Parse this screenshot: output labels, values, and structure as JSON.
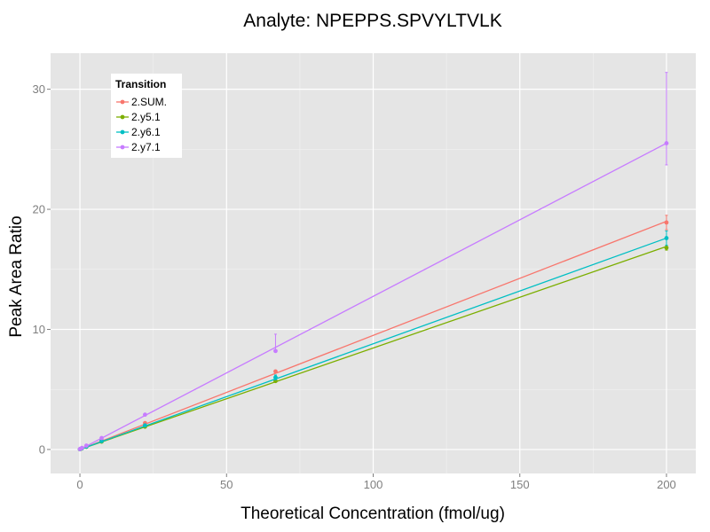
{
  "chart_data": {
    "type": "line",
    "title": "Analyte: NPEPPS.SPVYLTVLK",
    "xlabel": "Theoretical Concentration (fmol/ug)",
    "ylabel": "Peak Area Ratio",
    "xlim": [
      -10,
      210
    ],
    "ylim": [
      -2,
      33
    ],
    "xticks": [
      0,
      50,
      100,
      150,
      200
    ],
    "yticks": [
      0,
      10,
      20,
      30
    ],
    "grid": true,
    "legend": {
      "title": "Transition",
      "placement": "top-left"
    },
    "series": [
      {
        "name": "2.SUM.",
        "color": "#F8766D",
        "x": [
          0,
          0.2,
          0.7,
          2.2,
          7.4,
          22.2,
          66.7,
          200
        ],
        "y": [
          0.02,
          0.05,
          0.1,
          0.25,
          0.75,
          2.2,
          6.5,
          18.9
        ],
        "err_low": [
          0,
          0,
          0,
          0,
          0,
          0,
          6.4,
          18.3
        ],
        "err_high": [
          0,
          0,
          0,
          0,
          0,
          0,
          6.6,
          19.5
        ],
        "fit": [
          [
            0,
            0
          ],
          [
            200,
            19.0
          ]
        ]
      },
      {
        "name": "2.y5.1",
        "color": "#7CAE00",
        "x": [
          0,
          0.2,
          0.7,
          2.2,
          7.4,
          22.2,
          66.7,
          200
        ],
        "y": [
          0.02,
          0.04,
          0.1,
          0.22,
          0.65,
          1.9,
          5.7,
          16.8
        ],
        "err_low": [
          0,
          0,
          0,
          0,
          0,
          0,
          5.6,
          16.6
        ],
        "err_high": [
          0,
          0,
          0,
          0,
          0,
          0,
          5.8,
          17.0
        ],
        "fit": [
          [
            0,
            0
          ],
          [
            200,
            16.9
          ]
        ]
      },
      {
        "name": "2.y6.1",
        "color": "#00BFC4",
        "x": [
          0,
          0.2,
          0.7,
          2.2,
          7.4,
          22.2,
          66.7,
          200
        ],
        "y": [
          0.02,
          0.05,
          0.1,
          0.24,
          0.7,
          2.0,
          6.0,
          17.6
        ],
        "err_low": [
          0,
          0,
          0,
          0,
          0,
          0,
          5.8,
          17.0
        ],
        "err_high": [
          0,
          0,
          0,
          0,
          0,
          0,
          6.2,
          18.2
        ],
        "fit": [
          [
            0,
            0
          ],
          [
            200,
            17.6
          ]
        ]
      },
      {
        "name": "2.y7.1",
        "color": "#C77CFF",
        "x": [
          0,
          0.2,
          0.7,
          2.2,
          7.4,
          22.2,
          66.7,
          200
        ],
        "y": [
          0.03,
          0.06,
          0.13,
          0.32,
          0.95,
          2.9,
          8.2,
          25.5
        ],
        "err_low": [
          0,
          0,
          0,
          0,
          0,
          0,
          8.1,
          23.7
        ],
        "err_high": [
          0,
          0,
          0,
          0,
          0,
          0,
          9.6,
          31.4
        ],
        "fit": [
          [
            0,
            0
          ],
          [
            200,
            25.5
          ]
        ]
      }
    ]
  }
}
